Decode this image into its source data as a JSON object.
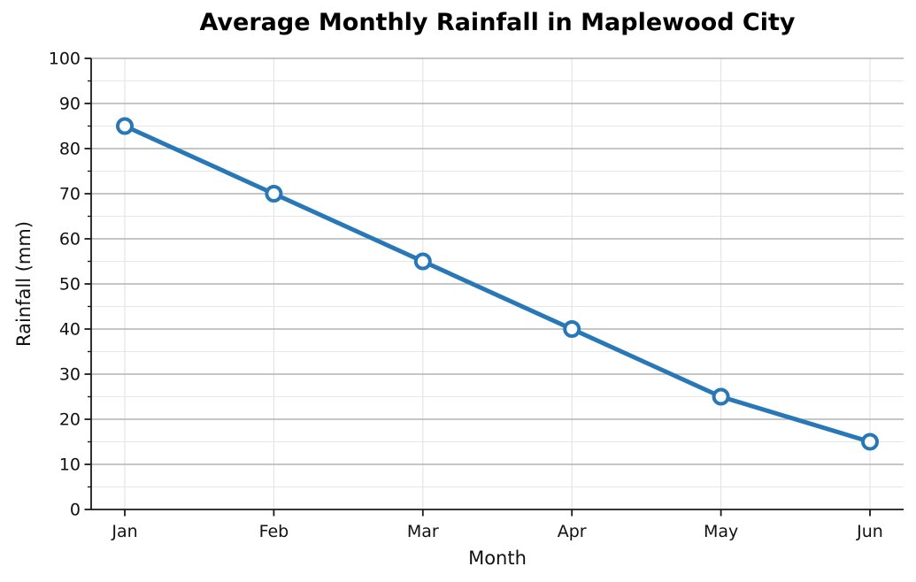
{
  "chart_data": {
    "type": "line",
    "title": "Average Monthly Rainfall in Maplewood City",
    "xlabel": "Month",
    "ylabel": "Rainfall (mm)",
    "categories": [
      "Jan",
      "Feb",
      "Mar",
      "Apr",
      "May",
      "Jun"
    ],
    "values": [
      85,
      70,
      55,
      40,
      25,
      15
    ],
    "ylim": [
      0,
      100
    ],
    "ytick_step": 10,
    "ytick_minor_step": 5,
    "grid": true,
    "legend_position": "none",
    "line_color": "#2878b8",
    "marker": {
      "shape": "circle",
      "fill": "#ffffff",
      "edge_color": "#2878b8"
    },
    "background_color": "#ffffff",
    "grid_major_color": "#b4b4b4",
    "grid_minor_color": "#e7e7e7",
    "grid_vertical_color": "#e4e4e4",
    "axis_color": "#1a1a1a"
  }
}
